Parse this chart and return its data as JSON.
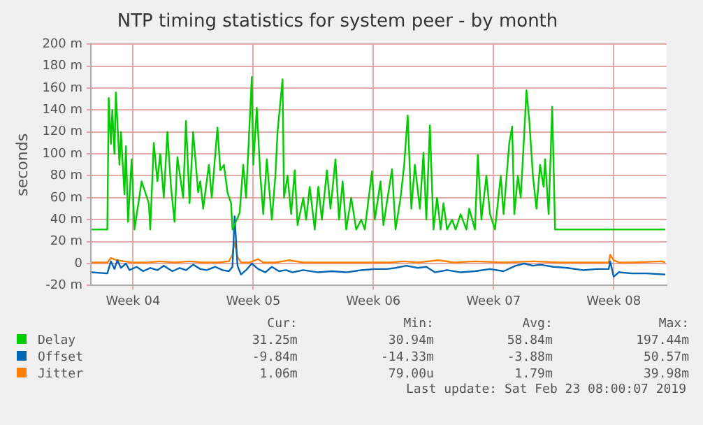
{
  "chart_data": {
    "type": "line",
    "title": "NTP timing statistics for system peer - by month",
    "ylabel": "seconds",
    "xlim": [
      "2019-01-22T01:00",
      "2019-02-24T14:00"
    ],
    "xticks": [
      {
        "value": "2019-01-24T12:00",
        "label": "Week 04"
      },
      {
        "value": "2019-01-31T12:00",
        "label": "Week 05"
      },
      {
        "value": "2019-02-07T12:00",
        "label": "Week 06"
      },
      {
        "value": "2019-02-14T12:00",
        "label": "Week 07"
      },
      {
        "value": "2019-02-21T12:00",
        "label": "Week 08"
      }
    ],
    "ylim": [
      -20,
      200
    ],
    "yticks": [
      {
        "value": -20,
        "label": "-20 m"
      },
      0,
      {
        "value": 20,
        "label": "20 m"
      },
      {
        "value": 40,
        "label": "40 m"
      },
      {
        "value": 60,
        "label": "60 m"
      },
      {
        "value": 80,
        "label": "80 m"
      },
      {
        "value": 100,
        "label": "100 m"
      },
      {
        "value": 120,
        "label": "120 m"
      },
      {
        "value": 140,
        "label": "140 m"
      },
      {
        "value": 160,
        "label": "160 m"
      },
      {
        "value": 180,
        "label": "180 m"
      },
      {
        "value": 200,
        "label": "200 m"
      }
    ],
    "grid": true,
    "legend": "bottom",
    "marker": "none",
    "line_style": "solid",
    "series": [
      {
        "name": "Delay",
        "color": "#00cc00",
        "x": [
          "2019-01-22T02:00",
          "2019-01-23T00:00",
          "2019-01-23T02:00",
          "2019-01-23T05:00",
          "2019-01-23T07:00",
          "2019-01-23T10:00",
          "2019-01-23T12:00",
          "2019-01-23T17:00",
          "2019-01-23T19:00",
          "2019-01-24T00:00",
          "2019-01-24T02:00",
          "2019-01-24T05:00",
          "2019-01-24T10:00",
          "2019-01-24T14:00",
          "2019-01-25T00:00",
          "2019-01-25T10:00",
          "2019-01-25T12:00",
          "2019-01-25T17:00",
          "2019-01-25T22:00",
          "2019-01-26T02:00",
          "2019-01-26T07:00",
          "2019-01-26T12:00",
          "2019-01-26T17:00",
          "2019-01-26T22:00",
          "2019-01-27T02:00",
          "2019-01-27T10:00",
          "2019-01-27T14:00",
          "2019-01-27T19:00",
          "2019-01-28T00:00",
          "2019-01-28T07:00",
          "2019-01-28T10:00",
          "2019-01-28T14:00",
          "2019-01-28T22:00",
          "2019-01-29T02:00",
          "2019-01-29T10:00",
          "2019-01-29T14:00",
          "2019-01-29T19:00",
          "2019-01-30T00:00",
          "2019-01-30T05:00",
          "2019-01-30T07:00",
          "2019-01-30T17:00",
          "2019-01-30T22:00",
          "2019-01-31T02:00",
          "2019-01-31T10:00",
          "2019-01-31T12:00",
          "2019-01-31T17:00",
          "2019-01-31T22:00",
          "2019-02-01T02:00",
          "2019-02-01T07:00",
          "2019-02-01T14:00",
          "2019-02-01T19:00",
          "2019-02-01T22:00",
          "2019-02-02T05:00",
          "2019-02-02T07:00",
          "2019-02-02T12:00",
          "2019-02-02T17:00",
          "2019-02-02T22:00",
          "2019-02-03T02:00",
          "2019-02-03T10:00",
          "2019-02-03T14:00",
          "2019-02-03T19:00",
          "2019-02-04T02:00",
          "2019-02-04T07:00",
          "2019-02-04T12:00",
          "2019-02-04T19:00",
          "2019-02-05T00:00",
          "2019-02-05T07:00",
          "2019-02-05T12:00",
          "2019-02-05T17:00",
          "2019-02-05T22:00",
          "2019-02-06T05:00",
          "2019-02-06T12:00",
          "2019-02-06T19:00",
          "2019-02-07T00:00",
          "2019-02-07T10:00",
          "2019-02-07T14:00",
          "2019-02-07T22:00",
          "2019-02-08T02:00",
          "2019-02-08T14:00",
          "2019-02-08T19:00",
          "2019-02-09T02:00",
          "2019-02-09T07:00",
          "2019-02-09T12:00",
          "2019-02-09T17:00",
          "2019-02-09T22:00",
          "2019-02-10T05:00",
          "2019-02-10T10:00",
          "2019-02-10T14:00",
          "2019-02-10T19:00",
          "2019-02-11T00:00",
          "2019-02-11T05:00",
          "2019-02-11T10:00",
          "2019-02-11T14:00",
          "2019-02-11T19:00",
          "2019-02-12T02:00",
          "2019-02-12T07:00",
          "2019-02-12T14:00",
          "2019-02-12T22:00",
          "2019-02-13T02:00",
          "2019-02-13T10:00",
          "2019-02-13T14:00",
          "2019-02-13T19:00",
          "2019-02-14T02:00",
          "2019-02-14T07:00",
          "2019-02-14T14:00",
          "2019-02-14T22:00",
          "2019-02-15T02:00",
          "2019-02-15T10:00",
          "2019-02-15T14:00",
          "2019-02-15T17:00",
          "2019-02-15T22:00",
          "2019-02-16T02:00",
          "2019-02-16T07:00",
          "2019-02-16T10:00",
          "2019-02-16T14:00",
          "2019-02-16T19:00",
          "2019-02-17T00:00",
          "2019-02-17T05:00",
          "2019-02-17T10:00",
          "2019-02-17T12:00",
          "2019-02-17T17:00",
          "2019-02-17T22:00",
          "2019-02-18T02:00",
          "2019-02-24T12:00"
        ],
        "values": [
          31,
          31,
          151,
          109,
          140,
          100,
          156,
          90,
          120,
          63,
          107,
          38,
          95,
          31,
          75,
          55,
          31,
          110,
          75,
          100,
          60,
          120,
          70,
          38,
          97,
          60,
          130,
          55,
          120,
          65,
          75,
          50,
          90,
          60,
          124,
          85,
          90,
          65,
          55,
          31,
          46,
          90,
          60,
          170,
          90,
          142,
          80,
          45,
          95,
          40,
          80,
          120,
          168,
          60,
          80,
          45,
          85,
          35,
          60,
          40,
          70,
          31,
          70,
          40,
          85,
          50,
          95,
          40,
          75,
          31,
          60,
          31,
          40,
          31,
          84,
          40,
          75,
          35,
          86,
          31,
          60,
          90,
          135,
          50,
          90,
          50,
          101,
          40,
          126,
          31,
          60,
          31,
          55,
          31,
          40,
          31,
          45,
          31,
          50,
          31,
          99,
          40,
          80,
          45,
          31,
          80,
          45,
          110,
          125,
          45,
          80,
          60,
          120,
          158,
          130,
          80,
          50,
          90,
          70,
          95,
          45,
          143,
          31,
          31
        ]
      },
      {
        "name": "Offset",
        "color": "#0066b3",
        "x": [
          "2019-01-22T02:00",
          "2019-01-23T00:00",
          "2019-01-23T05:00",
          "2019-01-23T10:00",
          "2019-01-23T14:00",
          "2019-01-23T19:00",
          "2019-01-24T02:00",
          "2019-01-24T07:00",
          "2019-01-24T17:00",
          "2019-01-25T02:00",
          "2019-01-25T12:00",
          "2019-01-25T22:00",
          "2019-01-26T07:00",
          "2019-01-26T19:00",
          "2019-01-27T05:00",
          "2019-01-27T14:00",
          "2019-01-28T00:00",
          "2019-01-28T10:00",
          "2019-01-28T19:00",
          "2019-01-29T07:00",
          "2019-01-29T17:00",
          "2019-01-30T02:00",
          "2019-01-30T07:00",
          "2019-01-30T10:00",
          "2019-01-30T14:00",
          "2019-01-30T19:00",
          "2019-01-31T02:00",
          "2019-01-31T10:00",
          "2019-01-31T19:00",
          "2019-02-01T05:00",
          "2019-02-01T14:00",
          "2019-02-02T00:00",
          "2019-02-02T10:00",
          "2019-02-02T19:00",
          "2019-02-03T10:00",
          "2019-02-04T07:00",
          "2019-02-05T02:00",
          "2019-02-05T22:00",
          "2019-02-06T19:00",
          "2019-02-07T14:00",
          "2019-02-08T07:00",
          "2019-02-08T19:00",
          "2019-02-09T10:00",
          "2019-02-10T02:00",
          "2019-02-10T14:00",
          "2019-02-11T02:00",
          "2019-02-11T19:00",
          "2019-02-12T14:00",
          "2019-02-13T10:00",
          "2019-02-14T07:00",
          "2019-02-15T02:00",
          "2019-02-15T19:00",
          "2019-02-16T07:00",
          "2019-02-16T19:00",
          "2019-02-17T05:00",
          "2019-02-17T14:00",
          "2019-02-18T00:00",
          "2019-02-18T19:00",
          "2019-02-19T17:00",
          "2019-02-20T12:00",
          "2019-02-21T05:00",
          "2019-02-21T07:00",
          "2019-02-21T12:00",
          "2019-02-21T19:00",
          "2019-02-22T14:00",
          "2019-02-23T10:00",
          "2019-02-24T12:00"
        ],
        "values": [
          -8,
          -9,
          2,
          -5,
          3,
          -4,
          0,
          -6,
          -3,
          -7,
          -4,
          -6,
          -2,
          -7,
          -4,
          -6,
          -1,
          -5,
          -6,
          -3,
          -6,
          -7,
          -3,
          43,
          -2,
          -10,
          -6,
          0,
          -5,
          -8,
          -3,
          -7,
          -6,
          -8,
          -6,
          -8,
          -7,
          -8,
          -6,
          -5,
          -5,
          -4,
          -2,
          -4,
          -3,
          -8,
          -6,
          -8,
          -7,
          -5,
          -7,
          -2,
          0,
          -2,
          -1,
          -2,
          -3,
          -4,
          -6,
          -5,
          -5,
          2,
          -12,
          -8,
          -9,
          -9,
          -10
        ]
      },
      {
        "name": "Jitter",
        "color": "#ff8000",
        "x": [
          "2019-01-22T02:00",
          "2019-01-23T00:00",
          "2019-01-23T05:00",
          "2019-01-23T14:00",
          "2019-01-24T00:00",
          "2019-01-24T10:00",
          "2019-01-25T07:00",
          "2019-01-26T02:00",
          "2019-01-26T22:00",
          "2019-01-27T19:00",
          "2019-01-28T14:00",
          "2019-01-29T10:00",
          "2019-01-30T02:00",
          "2019-01-30T07:00",
          "2019-01-30T10:00",
          "2019-01-30T14:00",
          "2019-01-30T19:00",
          "2019-01-31T07:00",
          "2019-01-31T19:00",
          "2019-02-01T02:00",
          "2019-02-01T19:00",
          "2019-02-02T14:00",
          "2019-02-03T10:00",
          "2019-02-05T02:00",
          "2019-02-06T19:00",
          "2019-02-08T10:00",
          "2019-02-09T07:00",
          "2019-02-10T02:00",
          "2019-02-11T07:00",
          "2019-02-12T05:00",
          "2019-02-13T10:00",
          "2019-02-15T02:00",
          "2019-02-16T19:00",
          "2019-02-18T10:00",
          "2019-02-20T02:00",
          "2019-02-21T05:00",
          "2019-02-21T07:00",
          "2019-02-21T12:00",
          "2019-02-21T19:00",
          "2019-02-22T14:00",
          "2019-02-24T07:00",
          "2019-02-24T12:00"
        ],
        "values": [
          1,
          1,
          5,
          3,
          2,
          1,
          1,
          2,
          1,
          2,
          1,
          1,
          2,
          8,
          20,
          6,
          1,
          1,
          4,
          1,
          1,
          3,
          1,
          1,
          1,
          1,
          2,
          1,
          3,
          1,
          2,
          1,
          2,
          1,
          1,
          1,
          8,
          3,
          1,
          1,
          2,
          1
        ]
      }
    ],
    "annotations": [
      "Cur:",
      "Min:",
      "Avg:",
      "Max:",
      "31.25m",
      "30.94m",
      "58.84m",
      "197.44m",
      "-9.84m",
      "-14.33m",
      "-3.88m",
      "50.57m",
      "1.06m",
      "79.00u",
      "1.79m",
      "39.98m",
      "Last update: Sat Feb 23 08:00:07 2019"
    ]
  }
}
